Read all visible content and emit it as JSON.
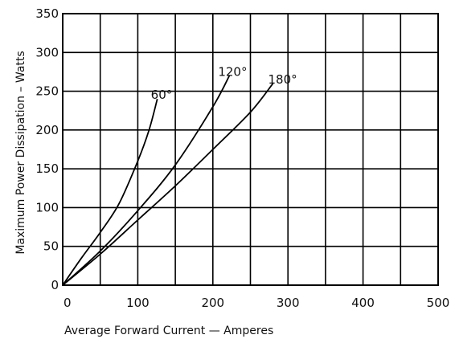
{
  "chart_data": {
    "type": "line",
    "title": "",
    "xlabel": "Average Forward Current — Amperes",
    "ylabel": "Maximum Power Dissipation – Watts",
    "xlim": [
      0,
      500
    ],
    "ylim": [
      0,
      350
    ],
    "x_ticks": [
      0,
      100,
      200,
      300,
      400,
      500
    ],
    "y_ticks": [
      0,
      50,
      100,
      150,
      200,
      250,
      300,
      350
    ],
    "grid": true,
    "series": [
      {
        "name": "60°",
        "points": [
          [
            0,
            0
          ],
          [
            25,
            35
          ],
          [
            50,
            68
          ],
          [
            75,
            105
          ],
          [
            100,
            160
          ],
          [
            115,
            200
          ],
          [
            126,
            240
          ]
        ]
      },
      {
        "name": "120°",
        "points": [
          [
            0,
            0
          ],
          [
            50,
            44
          ],
          [
            100,
            96
          ],
          [
            150,
            155
          ],
          [
            200,
            230
          ],
          [
            222,
            270
          ]
        ]
      },
      {
        "name": "180°",
        "points": [
          [
            0,
            0
          ],
          [
            50,
            40
          ],
          [
            100,
            84
          ],
          [
            150,
            128
          ],
          [
            200,
            175
          ],
          [
            250,
            223
          ],
          [
            280,
            260
          ]
        ]
      }
    ],
    "annotations": [
      {
        "text": "60°",
        "series": "60°"
      },
      {
        "text": "120°",
        "series": "120°"
      },
      {
        "text": "180°",
        "series": "180°"
      }
    ]
  }
}
